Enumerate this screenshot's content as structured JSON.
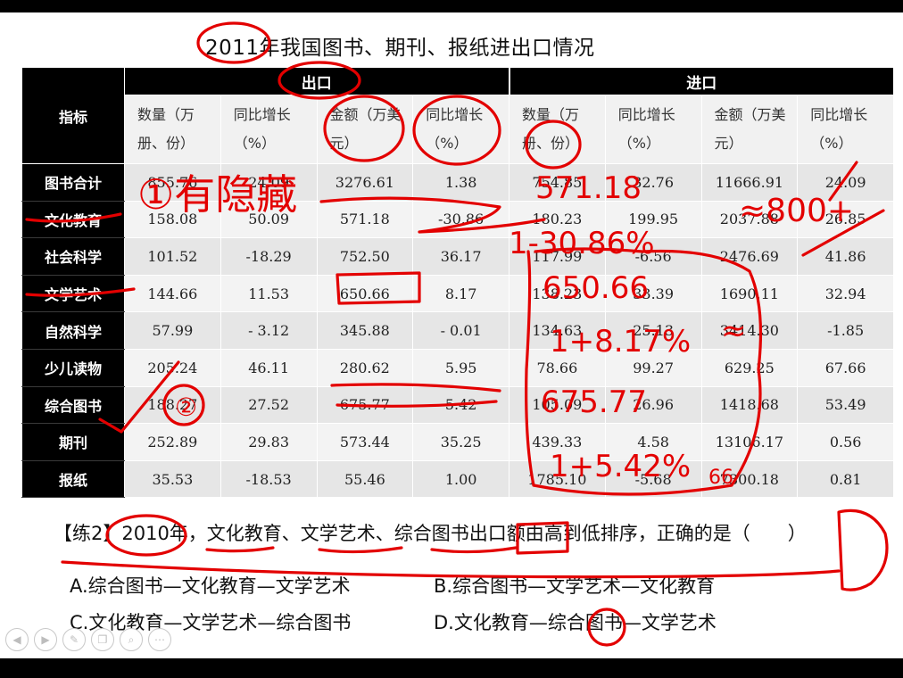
{
  "title": "2011年我国图书、期刊、报纸进出口情况",
  "table": {
    "indicator_header": "指标",
    "groups": [
      "出口",
      "进口"
    ],
    "column_headers": [
      "数量（万册、份）",
      "同比增长（%）",
      "金额（万美元）",
      "同比增长（%）",
      "数量（万册、份）",
      "同比增长（%）",
      "金额（万美元）",
      "同比增长（%）"
    ],
    "rows": [
      {
        "label": "图书合计",
        "values": [
          "855.76",
          "24.09",
          "3276.61",
          "1.38",
          "754.85",
          "32.76",
          "11666.91",
          "24.09"
        ]
      },
      {
        "label": "文化教育",
        "values": [
          "158.08",
          "50.09",
          "571.18",
          "-30.86",
          "180.23",
          "199.95",
          "2037.88",
          "26.85"
        ]
      },
      {
        "label": "社会科学",
        "values": [
          "101.52",
          "-18.29",
          "752.50",
          "36.17",
          "117.99",
          "-6.56",
          "2476.69",
          "41.86"
        ]
      },
      {
        "label": "文学艺术",
        "values": [
          "144.66",
          "11.53",
          "650.66",
          "8.17",
          "138.23",
          "33.39",
          "1690.11",
          "32.94"
        ]
      },
      {
        "label": "自然科学",
        "values": [
          "57.99",
          "- 3.12",
          "345.88",
          "- 0.01",
          "134.63",
          "25.13",
          "3414.30",
          "-1.85"
        ]
      },
      {
        "label": "少儿读物",
        "values": [
          "205.24",
          "46.11",
          "280.62",
          "5.95",
          "78.66",
          "99.27",
          "629.25",
          "67.66"
        ]
      },
      {
        "label": "综合图书",
        "values": [
          "188.27",
          "27.52",
          "675.77",
          "5.42",
          "105.09",
          "26.96",
          "1418.68",
          "53.49"
        ]
      },
      {
        "label": "期刊",
        "values": [
          "252.89",
          "29.83",
          "573.44",
          "35.25",
          "439.33",
          "4.58",
          "13106.17",
          "0.56"
        ]
      },
      {
        "label": "报纸",
        "values": [
          "35.53",
          "-18.53",
          "55.46",
          "1.00",
          "1785.10",
          "-5.68",
          "7300.18",
          "0.81"
        ]
      }
    ]
  },
  "question": {
    "text": "【练2】2010年，文化教育、文学艺术、综合图书出口额由高到低排序，正确的是（　　）",
    "options": {
      "A": "A.综合图书—文化教育—文学艺术",
      "B": "B.综合图书—文学艺术—文化教育",
      "C": "C.文化教育—文学艺术—综合图书",
      "D": "D.文化教育—综合图书—文学艺术"
    }
  },
  "annotations": {
    "note_1": "①有隐藏",
    "note_2": "②",
    "calc_a": "571.18",
    "calc_b": "1-30.86%",
    "calc_c": "≈800+",
    "calc_d": "650.66",
    "calc_e": "1+8.17%",
    "calc_f": "675.77",
    "calc_g": "1+5.42%",
    "calc_h": "≈",
    "calc_i": "66",
    "ink_color": "#e30000"
  },
  "controls": [
    "prev-icon",
    "next-icon",
    "pen-icon",
    "copy-icon",
    "zoom-icon",
    "more-icon"
  ]
}
